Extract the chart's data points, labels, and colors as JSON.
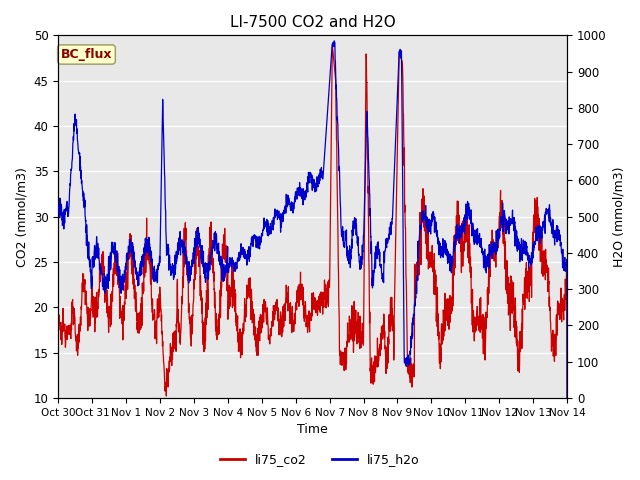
{
  "title": "LI-7500 CO2 and H2O",
  "xlabel": "Time",
  "ylabel_left": "CO2 (mmol/m3)",
  "ylabel_right": "H2O (mmol/m3)",
  "ylim_left": [
    10,
    50
  ],
  "ylim_right": [
    0,
    1000
  ],
  "xtick_labels": [
    "Oct 30",
    "Oct 31",
    "Nov 1",
    "Nov 2",
    "Nov 3",
    "Nov 4",
    "Nov 5",
    "Nov 6",
    "Nov 7",
    "Nov 8",
    "Nov 9",
    "Nov 10",
    "Nov 11",
    "Nov 12",
    "Nov 13",
    "Nov 14"
  ],
  "color_co2": "#cc0000",
  "color_h2o": "#0000cc",
  "legend_label_co2": "li75_co2",
  "legend_label_h2o": "li75_h2o",
  "annotation_text": "BC_flux",
  "annotation_color": "#8b0000",
  "annotation_bg": "#ffffcc",
  "annotation_edge": "#999966",
  "background_color": "#e8e8e8",
  "plot_bg_light": "#f0f0f0",
  "title_fontsize": 11,
  "axis_label_fontsize": 9,
  "tick_fontsize": 8.5,
  "legend_fontsize": 9,
  "linewidth": 0.9
}
